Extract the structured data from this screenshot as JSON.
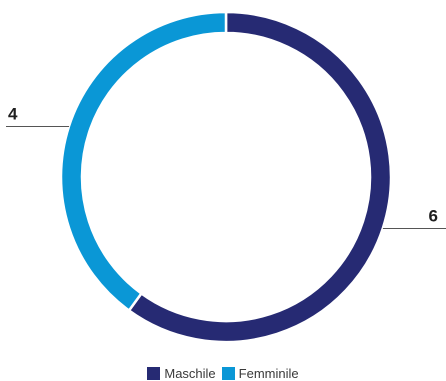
{
  "chart_data": {
    "type": "pie",
    "variant": "donut",
    "categories": [
      "Maschile",
      "Femminile"
    ],
    "values": [
      6,
      4
    ],
    "colors": [
      "#262a73",
      "#0a97d6"
    ],
    "data_labels": [
      "6",
      "4"
    ],
    "legend_position": "bottom"
  }
}
